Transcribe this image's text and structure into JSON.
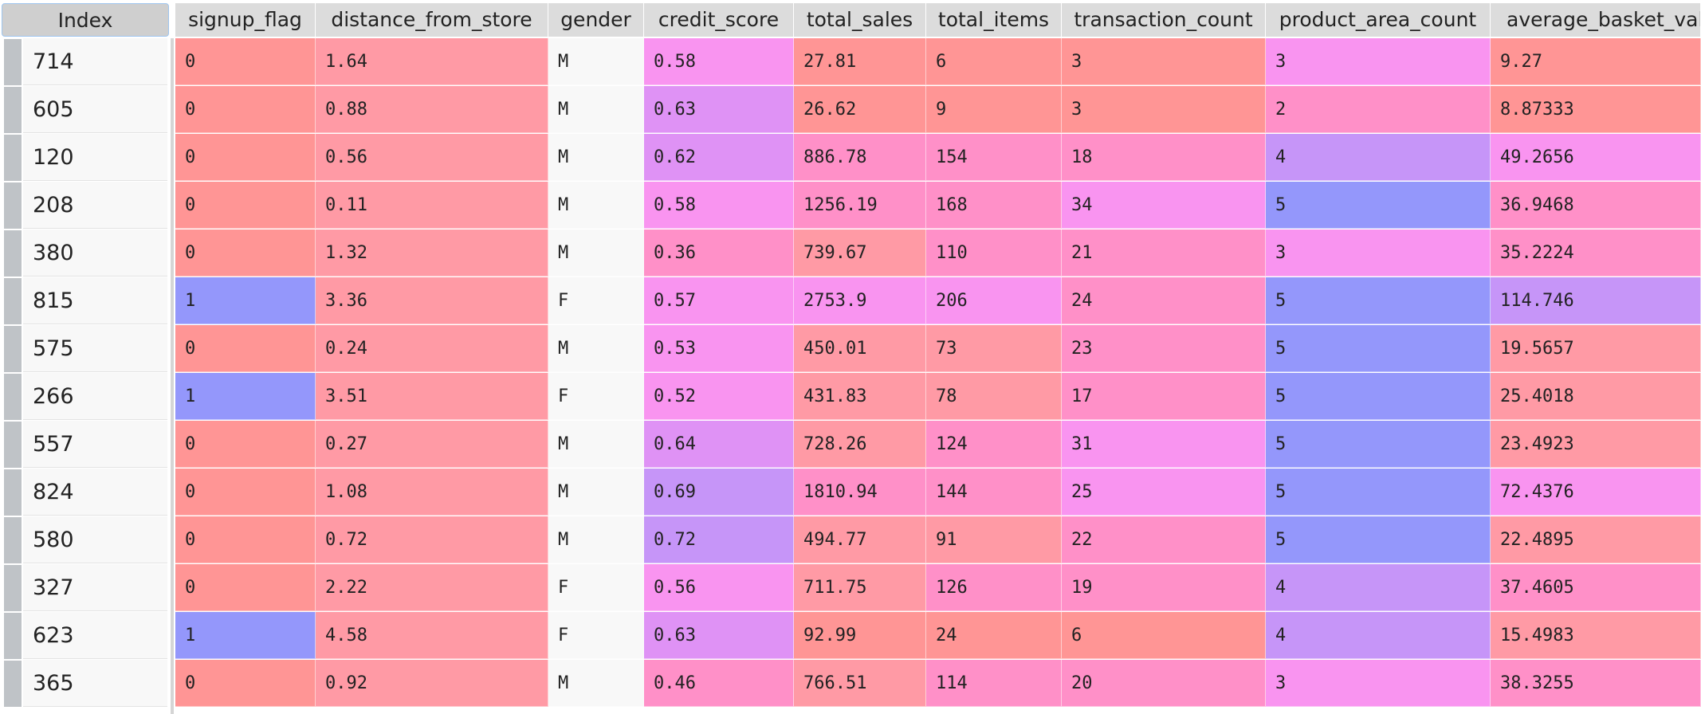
{
  "table": {
    "index_header": "Index",
    "columns": [
      "signup_flag",
      "distance_from_store",
      "gender",
      "credit_score",
      "total_sales",
      "total_items",
      "transaction_count",
      "product_area_count",
      "average_basket_val"
    ],
    "colors": {
      "red": "#ff9595",
      "salmon": "#ff9aa5",
      "pink": "#ff90c8",
      "magenta": "#f994f0",
      "orchid": "#df92f5",
      "lilac": "#c695f8",
      "blue": "#9497fb",
      "plain": "#f8f8f8"
    },
    "rows": [
      {
        "index": "714",
        "cells": [
          "0",
          "1.64",
          "M",
          "0.58",
          "27.81",
          "6",
          "3",
          "3",
          "9.27"
        ],
        "colors": [
          "red",
          "salmon",
          "plain",
          "magenta",
          "red",
          "red",
          "red",
          "magenta",
          "red"
        ]
      },
      {
        "index": "605",
        "cells": [
          "0",
          "0.88",
          "M",
          "0.63",
          "26.62",
          "9",
          "3",
          "2",
          "8.87333"
        ],
        "colors": [
          "red",
          "salmon",
          "plain",
          "orchid",
          "red",
          "red",
          "red",
          "pink",
          "red"
        ]
      },
      {
        "index": "120",
        "cells": [
          "0",
          "0.56",
          "M",
          "0.62",
          "886.78",
          "154",
          "18",
          "4",
          "49.2656"
        ],
        "colors": [
          "red",
          "salmon",
          "plain",
          "orchid",
          "pink",
          "pink",
          "pink",
          "lilac",
          "magenta"
        ]
      },
      {
        "index": "208",
        "cells": [
          "0",
          "0.11",
          "M",
          "0.58",
          "1256.19",
          "168",
          "34",
          "5",
          "36.9468"
        ],
        "colors": [
          "red",
          "salmon",
          "plain",
          "magenta",
          "pink",
          "pink",
          "magenta",
          "blue",
          "pink"
        ]
      },
      {
        "index": "380",
        "cells": [
          "0",
          "1.32",
          "M",
          "0.36",
          "739.67",
          "110",
          "21",
          "3",
          "35.2224"
        ],
        "colors": [
          "red",
          "salmon",
          "plain",
          "pink",
          "salmon",
          "pink",
          "pink",
          "magenta",
          "pink"
        ]
      },
      {
        "index": "815",
        "cells": [
          "1",
          "3.36",
          "F",
          "0.57",
          "2753.9",
          "206",
          "24",
          "5",
          "114.746"
        ],
        "colors": [
          "blue",
          "salmon",
          "plain",
          "magenta",
          "magenta",
          "magenta",
          "pink",
          "blue",
          "lilac"
        ]
      },
      {
        "index": "575",
        "cells": [
          "0",
          "0.24",
          "M",
          "0.53",
          "450.01",
          "73",
          "23",
          "5",
          "19.5657"
        ],
        "colors": [
          "red",
          "salmon",
          "plain",
          "magenta",
          "salmon",
          "salmon",
          "pink",
          "blue",
          "salmon"
        ]
      },
      {
        "index": "266",
        "cells": [
          "1",
          "3.51",
          "F",
          "0.52",
          "431.83",
          "78",
          "17",
          "5",
          "25.4018"
        ],
        "colors": [
          "blue",
          "salmon",
          "plain",
          "magenta",
          "salmon",
          "salmon",
          "pink",
          "blue",
          "salmon"
        ]
      },
      {
        "index": "557",
        "cells": [
          "0",
          "0.27",
          "M",
          "0.64",
          "728.26",
          "124",
          "31",
          "5",
          "23.4923"
        ],
        "colors": [
          "red",
          "salmon",
          "plain",
          "orchid",
          "salmon",
          "pink",
          "magenta",
          "blue",
          "salmon"
        ]
      },
      {
        "index": "824",
        "cells": [
          "0",
          "1.08",
          "M",
          "0.69",
          "1810.94",
          "144",
          "25",
          "5",
          "72.4376"
        ],
        "colors": [
          "red",
          "salmon",
          "plain",
          "lilac",
          "pink",
          "pink",
          "magenta",
          "blue",
          "magenta"
        ]
      },
      {
        "index": "580",
        "cells": [
          "0",
          "0.72",
          "M",
          "0.72",
          "494.77",
          "91",
          "22",
          "5",
          "22.4895"
        ],
        "colors": [
          "red",
          "salmon",
          "plain",
          "lilac",
          "salmon",
          "salmon",
          "pink",
          "blue",
          "salmon"
        ]
      },
      {
        "index": "327",
        "cells": [
          "0",
          "2.22",
          "F",
          "0.56",
          "711.75",
          "126",
          "19",
          "4",
          "37.4605"
        ],
        "colors": [
          "red",
          "salmon",
          "plain",
          "magenta",
          "salmon",
          "pink",
          "pink",
          "lilac",
          "pink"
        ]
      },
      {
        "index": "623",
        "cells": [
          "1",
          "4.58",
          "F",
          "0.63",
          "92.99",
          "24",
          "6",
          "4",
          "15.4983"
        ],
        "colors": [
          "blue",
          "salmon",
          "plain",
          "orchid",
          "red",
          "red",
          "red",
          "lilac",
          "salmon"
        ]
      },
      {
        "index": "365",
        "cells": [
          "0",
          "0.92",
          "M",
          "0.46",
          "766.51",
          "114",
          "20",
          "3",
          "38.3255"
        ],
        "colors": [
          "red",
          "salmon",
          "plain",
          "pink",
          "salmon",
          "pink",
          "pink",
          "magenta",
          "pink"
        ]
      }
    ]
  }
}
